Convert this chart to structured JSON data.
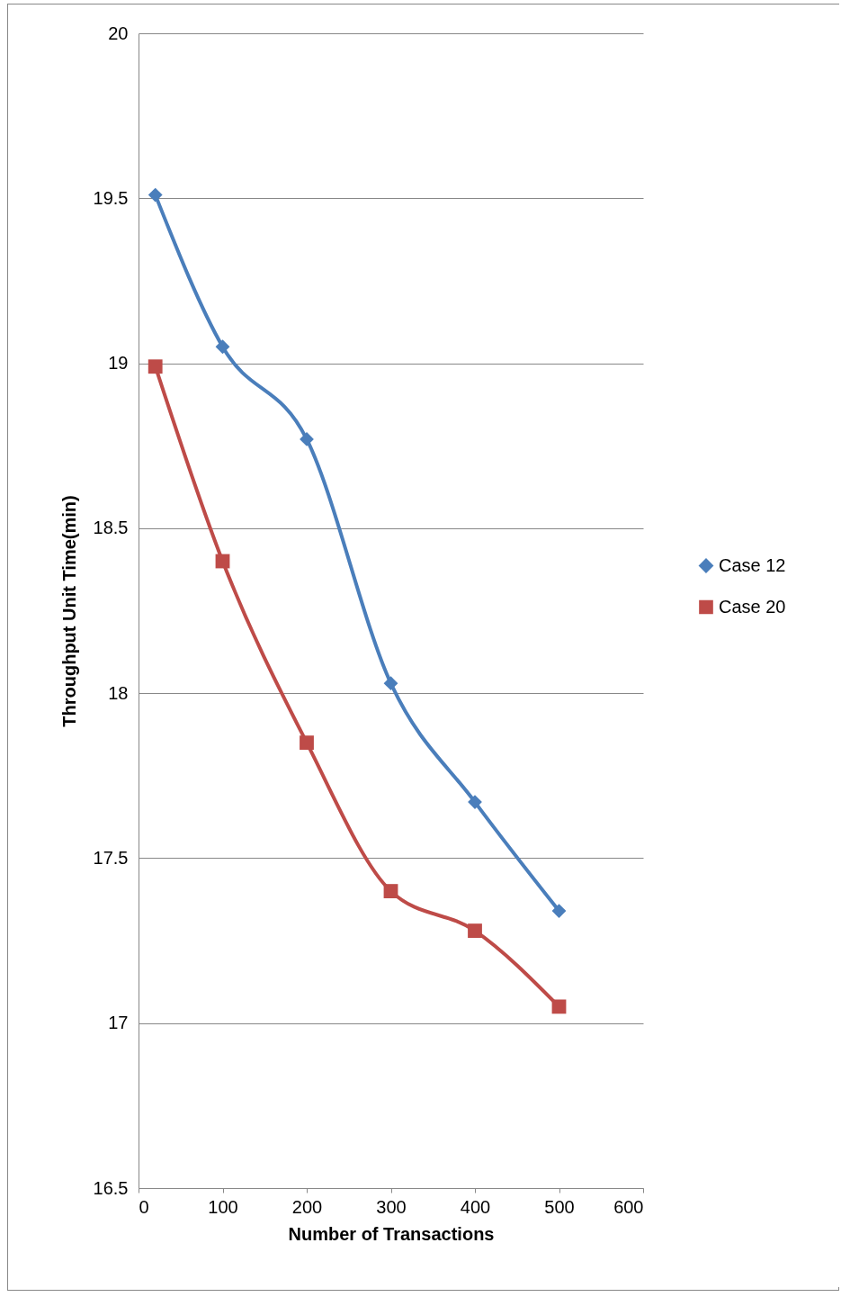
{
  "chart_data": {
    "type": "line",
    "xlabel": "Number of Transactions",
    "ylabel": "Throughput Unit Time(min)",
    "x": [
      20,
      100,
      200,
      300,
      400,
      500
    ],
    "series": [
      {
        "name": "Case 12",
        "color": "#4a7ebb",
        "marker": "diamond",
        "values": [
          19.51,
          19.05,
          18.77,
          18.03,
          17.67,
          17.34
        ]
      },
      {
        "name": "Case 20",
        "color": "#be4b48",
        "marker": "square",
        "values": [
          18.99,
          18.4,
          17.85,
          17.4,
          17.28,
          17.05
        ]
      }
    ],
    "xlim": [
      0,
      600
    ],
    "xticks": [
      0,
      100,
      200,
      300,
      400,
      500,
      600
    ],
    "ylim": [
      16.5,
      20
    ],
    "yticks": [
      16.5,
      17,
      17.5,
      18,
      18.5,
      19,
      19.5,
      20
    ],
    "grid": "y",
    "legend": "right",
    "line_style": "solid"
  }
}
